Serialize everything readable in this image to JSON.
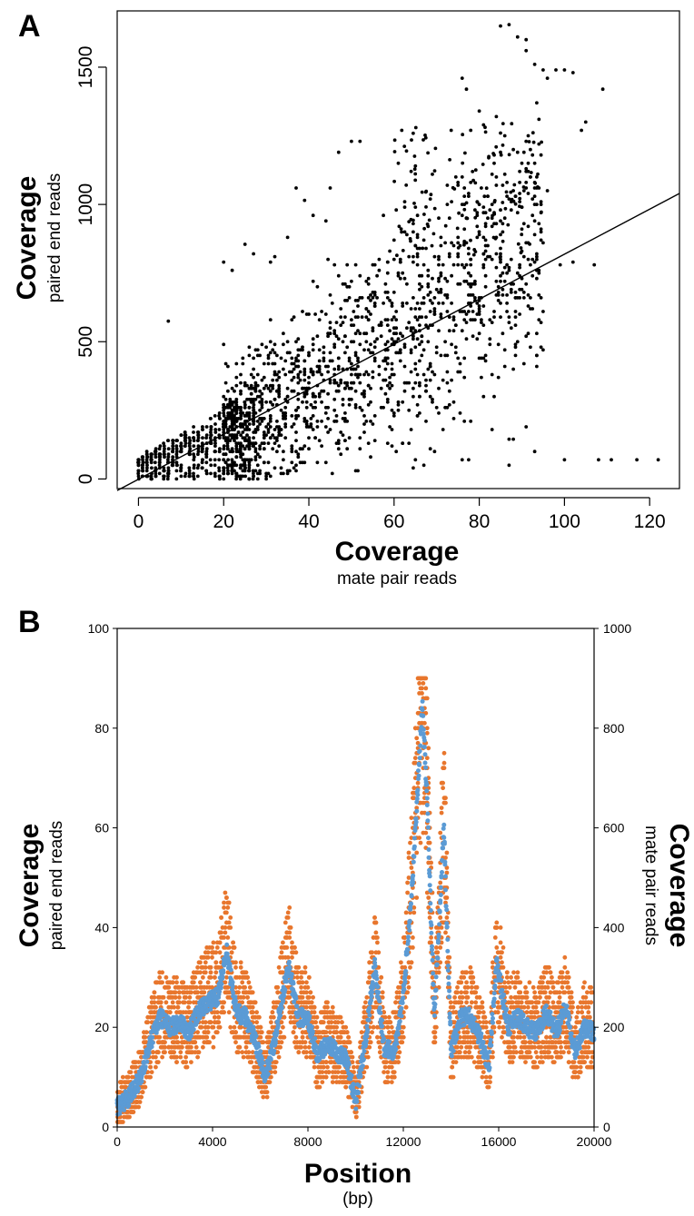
{
  "chart_data": [
    {
      "panel": "A",
      "type": "scatter",
      "x_label": "Coverage",
      "x_sublabel": "mate pair reads",
      "y_label": "Coverage",
      "y_sublabel": "paired end reads",
      "xlim": [
        -5,
        127
      ],
      "ylim": [
        -35,
        1705
      ],
      "x_ticks": [
        0,
        20,
        40,
        60,
        80,
        100,
        120
      ],
      "y_ticks": [
        0,
        500,
        1000,
        1500
      ],
      "grid": false,
      "point_color": "#000000",
      "fit_line": {
        "x0": -5,
        "y0": -42,
        "x1": 127,
        "y1": 1040
      },
      "outliers": [
        [
          85,
          1650
        ],
        [
          87,
          1655
        ],
        [
          89,
          1610
        ],
        [
          91,
          1600
        ],
        [
          91,
          1560
        ],
        [
          93,
          1510
        ],
        [
          95,
          1490
        ],
        [
          96,
          1460
        ],
        [
          98,
          1490
        ],
        [
          100,
          1490
        ],
        [
          102,
          1480
        ],
        [
          109,
          1420
        ],
        [
          105,
          1300
        ],
        [
          104,
          1270
        ],
        [
          76,
          1460
        ],
        [
          77,
          1420
        ],
        [
          80,
          1340
        ],
        [
          81,
          1290
        ],
        [
          84,
          1320
        ],
        [
          86,
          1250
        ],
        [
          88,
          1200
        ],
        [
          90,
          1150
        ],
        [
          92,
          1100
        ],
        [
          94,
          1060
        ],
        [
          96,
          1050
        ],
        [
          65,
          1140
        ],
        [
          61,
          1150
        ],
        [
          52,
          1230
        ],
        [
          50,
          1230
        ],
        [
          47,
          1190
        ],
        [
          69,
          1110
        ],
        [
          64,
          1120
        ],
        [
          39,
          1015
        ],
        [
          44,
          940
        ],
        [
          37,
          1060
        ],
        [
          35,
          880
        ],
        [
          45,
          1060
        ],
        [
          41,
          960
        ],
        [
          25,
          855
        ],
        [
          20,
          790
        ],
        [
          22,
          760
        ],
        [
          27,
          820
        ],
        [
          32,
          810
        ],
        [
          31,
          790
        ],
        [
          7,
          575
        ],
        [
          107,
          780
        ],
        [
          102,
          790
        ],
        [
          99,
          780
        ],
        [
          108,
          70
        ],
        [
          111,
          70
        ],
        [
          117,
          70
        ],
        [
          122,
          70
        ],
        [
          100,
          70
        ],
        [
          76,
          70
        ],
        [
          83,
          180
        ],
        [
          88,
          145
        ],
        [
          87,
          145
        ]
      ]
    },
    {
      "panel": "B",
      "type": "scatter",
      "x_label": "Position",
      "x_sublabel": "(bp)",
      "y_label": "Coverage",
      "y_sublabel": "paired end reads",
      "y2_label": "Coverage",
      "y2_sublabel": "mate pair reads",
      "xlim": [
        0,
        20000
      ],
      "ylim": [
        0,
        100
      ],
      "y2lim": [
        0,
        1000
      ],
      "x_ticks": [
        0,
        4000,
        8000,
        12000,
        16000,
        20000
      ],
      "y_ticks": [
        0,
        20,
        40,
        60,
        80,
        100
      ],
      "y2_ticks": [
        0,
        200,
        400,
        600,
        800,
        1000
      ],
      "grid": false,
      "series": [
        {
          "color": "#e8762d",
          "axis": "left"
        },
        {
          "color": "#5b9bd5",
          "axis": "right"
        }
      ],
      "profile": [
        [
          0,
          4
        ],
        [
          500,
          6
        ],
        [
          1000,
          10
        ],
        [
          1400,
          17
        ],
        [
          1800,
          22
        ],
        [
          2200,
          20
        ],
        [
          2600,
          21
        ],
        [
          3000,
          19
        ],
        [
          3400,
          23
        ],
        [
          3800,
          25
        ],
        [
          4200,
          26
        ],
        [
          4600,
          35
        ],
        [
          5000,
          23
        ],
        [
          5400,
          22
        ],
        [
          5800,
          17
        ],
        [
          6200,
          10
        ],
        [
          6600,
          17
        ],
        [
          7000,
          28
        ],
        [
          7200,
          32
        ],
        [
          7600,
          22
        ],
        [
          8000,
          22
        ],
        [
          8400,
          14
        ],
        [
          8800,
          17
        ],
        [
          9200,
          15
        ],
        [
          9600,
          14
        ],
        [
          10000,
          5
        ],
        [
          10400,
          17
        ],
        [
          10800,
          32
        ],
        [
          11200,
          16
        ],
        [
          11600,
          15
        ],
        [
          12000,
          26
        ],
        [
          12400,
          50
        ],
        [
          12800,
          85
        ],
        [
          13000,
          65
        ],
        [
          13300,
          22
        ],
        [
          13700,
          60
        ],
        [
          14000,
          15
        ],
        [
          14400,
          22
        ],
        [
          14800,
          22
        ],
        [
          15200,
          18
        ],
        [
          15600,
          12
        ],
        [
          15900,
          33
        ],
        [
          16400,
          20
        ],
        [
          16800,
          22
        ],
        [
          17200,
          20
        ],
        [
          17600,
          19
        ],
        [
          18000,
          23
        ],
        [
          18400,
          19
        ],
        [
          18800,
          24
        ],
        [
          19200,
          15
        ],
        [
          19600,
          20
        ],
        [
          20000,
          19
        ]
      ]
    }
  ]
}
